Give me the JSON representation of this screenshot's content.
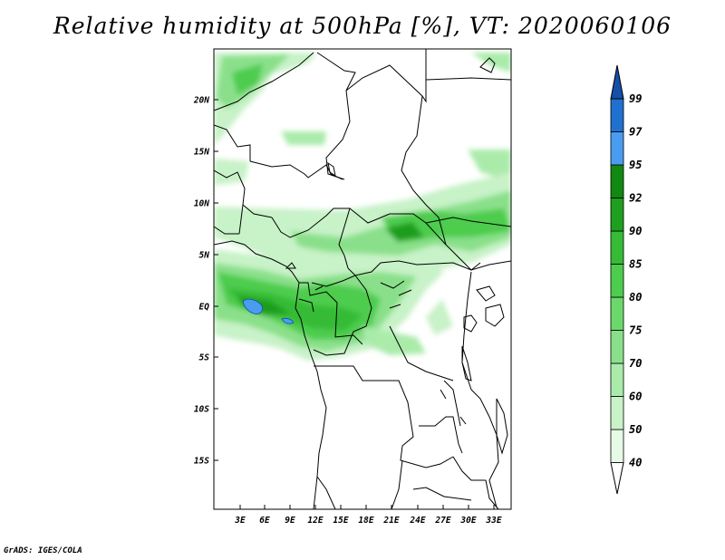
{
  "title": "Relative humidity at 500hPa [%], VT: 2020060106",
  "credit": "GrADS: IGES/COLA",
  "map": {
    "lat_ticks": [
      "20N",
      "15N",
      "10N",
      "5N",
      "EQ",
      "5S",
      "10S",
      "15S"
    ],
    "lon_ticks": [
      "3E",
      "6E",
      "9E",
      "12E",
      "15E",
      "18E",
      "21E",
      "24E",
      "27E",
      "30E",
      "33E"
    ]
  },
  "colorbar": {
    "labels": [
      "40",
      "50",
      "60",
      "70",
      "75",
      "80",
      "85",
      "90",
      "92",
      "95",
      "97",
      "99"
    ],
    "colors": [
      "#ffffff",
      "#e6fae6",
      "#c8f2c8",
      "#aaebaa",
      "#8ae08a",
      "#6cd86c",
      "#4ecc4e",
      "#36bb36",
      "#1f9e1f",
      "#118811",
      "#4a9cf0",
      "#2070d0",
      "#1450a8"
    ]
  }
}
